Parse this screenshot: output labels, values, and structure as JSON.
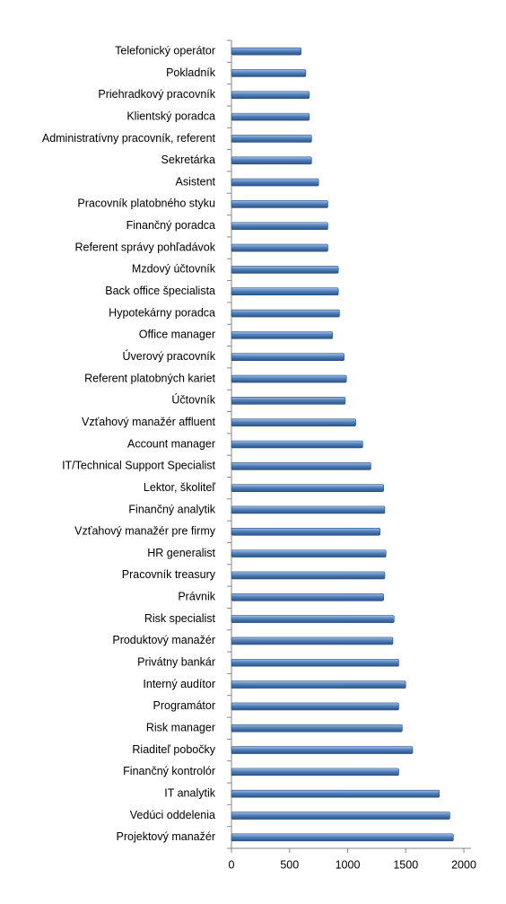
{
  "chart_data": {
    "type": "bar",
    "orientation": "horizontal",
    "categories": [
      "Telefonický operátor",
      "Pokladník",
      "Priehradkový pracovník",
      "Klientský poradca",
      "Administratívny pracovník, referent",
      "Sekretárka",
      "Asistent",
      "Pracovník platobného styku",
      "Finančný poradca",
      "Referent správy pohľadávok",
      "Mzdový účtovník",
      "Back office špecialista",
      "Hypotekárny poradca",
      "Office manager",
      "Úverový pracovník",
      "Referent platobných kariet",
      "Účtovník",
      "Vzťahový manažér affluent",
      "Account manager",
      "IT/Technical Support Specialist",
      "Lektor, školiteľ",
      "Finančný analytik",
      "Vzťahový manažér pre firmy",
      "HR generalist",
      "Pracovník treasury",
      "Právnik",
      "Risk specialist",
      "Produktový manažér",
      "Privátny bankár",
      "Interný audítor",
      "Programátor",
      "Risk manager",
      "Riaditeľ pobočky",
      "Finančný kontrolór",
      "IT analytik",
      "Vedúci oddelenia",
      "Projektový manažér"
    ],
    "values": [
      600,
      640,
      670,
      670,
      690,
      690,
      750,
      830,
      830,
      830,
      920,
      920,
      930,
      870,
      970,
      990,
      980,
      1070,
      1130,
      1200,
      1310,
      1320,
      1280,
      1330,
      1320,
      1310,
      1400,
      1390,
      1440,
      1500,
      1440,
      1470,
      1560,
      1440,
      1790,
      1880,
      1910
    ],
    "color": "#4f81bd",
    "xlim": [
      0,
      2000
    ],
    "xticks": [
      0,
      500,
      1000,
      1500,
      2000
    ]
  }
}
